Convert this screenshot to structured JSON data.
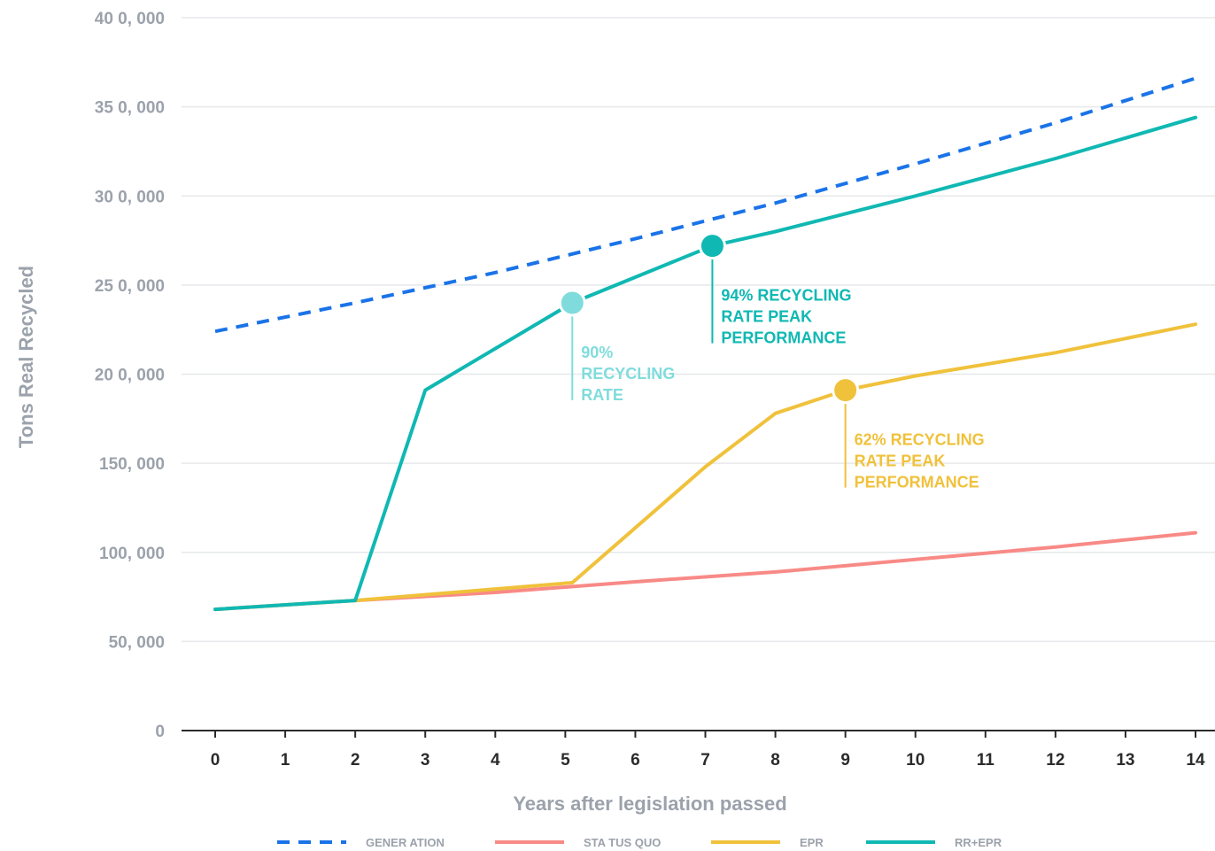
{
  "chart_data": {
    "type": "line",
    "xlabel": "Years after legislation passed",
    "ylabel": "Tons Real Recycled",
    "xlim": [
      0,
      14
    ],
    "ylim": [
      0,
      400000
    ],
    "x_ticks": [
      "0",
      "1",
      "2",
      "3",
      "4",
      "5",
      "6",
      "7",
      "8",
      "9",
      "10",
      "11",
      "12",
      "13",
      "14"
    ],
    "y_ticks": [
      {
        "value": 0,
        "label": "0"
      },
      {
        "value": 50000,
        "label": "50, 000"
      },
      {
        "value": 100000,
        "label": "100, 000"
      },
      {
        "value": 150000,
        "label": "150, 000"
      },
      {
        "value": 200000,
        "label": "20 0, 000"
      },
      {
        "value": 250000,
        "label": "25 0, 000"
      },
      {
        "value": 300000,
        "label": "30 0, 000"
      },
      {
        "value": 350000,
        "label": "35 0, 000"
      },
      {
        "value": 400000,
        "label": "40 0, 000"
      }
    ],
    "grid": true,
    "legend_position": "bottom",
    "series": [
      {
        "name": "GENER ATION",
        "color": "#1a73e8",
        "dashed": true,
        "points": [
          [
            0,
            224000
          ],
          [
            2,
            240000
          ],
          [
            4,
            257000
          ],
          [
            6,
            276000
          ],
          [
            8,
            296000
          ],
          [
            10,
            318000
          ],
          [
            12,
            341000
          ],
          [
            14,
            366000
          ]
        ]
      },
      {
        "name": "STA TUS QUO",
        "color": "#f88a86",
        "dashed": false,
        "points": [
          [
            0,
            68000
          ],
          [
            2,
            73000
          ],
          [
            4,
            77500
          ],
          [
            6,
            83500
          ],
          [
            8,
            89000
          ],
          [
            10,
            96000
          ],
          [
            12,
            103000
          ],
          [
            14,
            111000
          ]
        ]
      },
      {
        "name": "EPR",
        "color": "#f0c13b",
        "dashed": false,
        "points": [
          [
            0,
            68000
          ],
          [
            2,
            73000
          ],
          [
            5.1,
            83000
          ],
          [
            7,
            148000
          ],
          [
            8,
            178000
          ],
          [
            9,
            191000
          ],
          [
            10,
            199000
          ],
          [
            12,
            212000
          ],
          [
            14,
            228000
          ]
        ]
      },
      {
        "name": "RR+EPR",
        "color": "#10b8b3",
        "dashed": false,
        "points": [
          [
            0,
            68000
          ],
          [
            2,
            73000
          ],
          [
            3,
            191000
          ],
          [
            5.1,
            240000
          ],
          [
            7.1,
            272000
          ],
          [
            8,
            280000
          ],
          [
            10,
            300000
          ],
          [
            12,
            321000
          ],
          [
            14,
            344000
          ]
        ]
      }
    ],
    "annotations": [
      {
        "x": 5.1,
        "y": 240000,
        "color": "#80dcdc",
        "lines": [
          "90%",
          "RECYCLING",
          "RATE"
        ]
      },
      {
        "x": 7.1,
        "y": 272000,
        "color": "#10b8b3",
        "lines": [
          "94% RECYCLING",
          "RATE PEAK",
          "PERFORMANCE"
        ]
      },
      {
        "x": 9,
        "y": 191000,
        "color": "#f0c13b",
        "lines": [
          "62% RECYCLING",
          "RATE PEAK",
          "PERFORMANCE"
        ]
      }
    ]
  }
}
